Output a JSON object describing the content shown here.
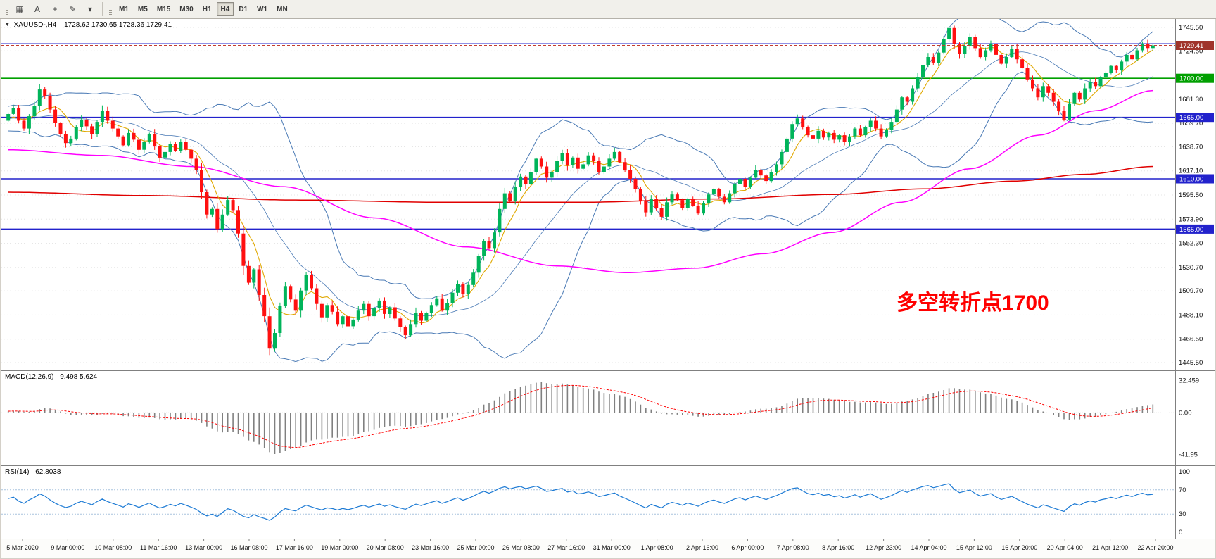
{
  "toolbar": {
    "icons": [
      {
        "name": "windows-grid-icon",
        "glyph": "▦"
      },
      {
        "name": "annotate-letter-icon",
        "glyph": "A"
      },
      {
        "name": "crosshair-icon",
        "glyph": "+"
      },
      {
        "name": "draw-tools-icon",
        "glyph": "✎"
      },
      {
        "name": "draw-tools-dropdown-icon",
        "glyph": "▾"
      }
    ],
    "timeframes": [
      "M1",
      "M5",
      "M15",
      "M30",
      "H1",
      "H4",
      "D1",
      "W1",
      "MN"
    ],
    "active_timeframe": "H4"
  },
  "chart": {
    "symbol_header": "XAUUSD-,H4",
    "ohlc_text": "1728.62 1730.65 1728.36 1729.41",
    "annotation": {
      "text": "多空转折点1700",
      "color": "#FF0000"
    },
    "price_ticks": [
      "1745.50",
      "1724.50",
      "1681.30",
      "1659.70",
      "1638.70",
      "1617.10",
      "1595.50",
      "1573.90",
      "1552.30",
      "1530.70",
      "1509.70",
      "1488.10",
      "1466.50",
      "1445.50"
    ],
    "hlines": [
      {
        "value": 1731.0,
        "label": "",
        "color": "#2222CC",
        "width": 1
      },
      {
        "value": 1700.0,
        "label": "1700.00",
        "color": "#00A000",
        "width": 1.6
      },
      {
        "value": 1665.0,
        "label": "1665.00",
        "color": "#2222CC",
        "width": 1.6
      },
      {
        "value": 1610.0,
        "label": "1610.00",
        "color": "#2222CC",
        "width": 1.6
      },
      {
        "value": 1565.0,
        "label": "1565.00",
        "color": "#2222CC",
        "width": 1.6
      }
    ],
    "current_price": {
      "value": 1729.41,
      "label": "1729.41",
      "line_color": "#C43C30",
      "badge_color": "#A0342B"
    },
    "time_labels": [
      "5 Mar 2020",
      "9 Mar 00:00",
      "10 Mar 08:00",
      "11 Mar 16:00",
      "13 Mar 00:00",
      "16 Mar 08:00",
      "17 Mar 16:00",
      "19 Mar 00:00",
      "20 Mar 08:00",
      "23 Mar 16:00",
      "25 Mar 00:00",
      "26 Mar 08:00",
      "27 Mar 16:00",
      "31 Mar 00:00",
      "1 Apr 08:00",
      "2 Apr 16:00",
      "6 Apr 00:00",
      "7 Apr 08:00",
      "8 Apr 16:00",
      "12 Apr 23:00",
      "14 Apr 04:00",
      "15 Apr 12:00",
      "16 Apr 20:00",
      "20 Apr 04:00",
      "21 Apr 12:00",
      "22 Apr 20:00"
    ]
  },
  "macd_panel": {
    "title": "MACD(12,26,9)",
    "values": "9.498 5.624",
    "ticks": [
      "32.459",
      "0.00",
      "-41.95"
    ],
    "range": [
      -45,
      35
    ]
  },
  "rsi_panel": {
    "title": "RSI(14)",
    "value": "62.8038",
    "ticks": [
      "100",
      "70",
      "30",
      "0"
    ],
    "levels": [
      70,
      30
    ]
  },
  "chart_data": {
    "type": "candlestick",
    "symbol": "XAUUSD-",
    "timeframe": "H4",
    "ylim": [
      1445.5,
      1745.5
    ],
    "preroll": [
      1655,
      1662,
      1670,
      1664,
      1658,
      1666,
      1674,
      1668,
      1660,
      1652,
      1658,
      1665,
      1672,
      1666,
      1659,
      1664,
      1670,
      1663,
      1656,
      1662
    ],
    "closes": [
      1668,
      1673,
      1662,
      1655,
      1666,
      1675,
      1690,
      1684,
      1672,
      1660,
      1650,
      1642,
      1646,
      1656,
      1663,
      1657,
      1650,
      1661,
      1671,
      1662,
      1655,
      1648,
      1640,
      1651,
      1645,
      1636,
      1643,
      1650,
      1639,
      1629,
      1634,
      1641,
      1635,
      1643,
      1636,
      1628,
      1618,
      1598,
      1578,
      1583,
      1565,
      1578,
      1591,
      1582,
      1561,
      1532,
      1517,
      1529,
      1506,
      1487,
      1458,
      1472,
      1496,
      1514,
      1502,
      1492,
      1510,
      1524,
      1512,
      1498,
      1486,
      1497,
      1491,
      1480,
      1487,
      1478,
      1484,
      1492,
      1498,
      1487,
      1494,
      1501,
      1489,
      1495,
      1485,
      1477,
      1470,
      1480,
      1490,
      1483,
      1490,
      1497,
      1503,
      1492,
      1499,
      1508,
      1516,
      1507,
      1515,
      1526,
      1541,
      1554,
      1548,
      1562,
      1583,
      1597,
      1590,
      1603,
      1612,
      1605,
      1616,
      1628,
      1621,
      1611,
      1616,
      1626,
      1633,
      1622,
      1629,
      1619,
      1623,
      1631,
      1626,
      1616,
      1621,
      1628,
      1634,
      1625,
      1618,
      1610,
      1601,
      1590,
      1580,
      1592,
      1584,
      1576,
      1589,
      1596,
      1591,
      1584,
      1592,
      1586,
      1579,
      1588,
      1596,
      1601,
      1594,
      1589,
      1597,
      1605,
      1610,
      1603,
      1611,
      1618,
      1613,
      1608,
      1616,
      1623,
      1634,
      1646,
      1659,
      1664,
      1656,
      1649,
      1646,
      1653,
      1647,
      1651,
      1645,
      1649,
      1643,
      1648,
      1655,
      1649,
      1656,
      1662,
      1655,
      1648,
      1654,
      1661,
      1672,
      1683,
      1679,
      1691,
      1701,
      1712,
      1719,
      1714,
      1723,
      1735,
      1745,
      1731,
      1722,
      1729,
      1737,
      1727,
      1719,
      1725,
      1731,
      1721,
      1713,
      1719,
      1726,
      1717,
      1709,
      1699,
      1691,
      1683,
      1693,
      1687,
      1679,
      1671,
      1663,
      1677,
      1687,
      1681,
      1691,
      1697,
      1693,
      1701,
      1705,
      1711,
      1707,
      1715,
      1721,
      1717,
      1725,
      1731,
      1727,
      1729.41
    ],
    "candle_colors": {
      "up": "#00B45A",
      "down": "#FF1010"
    },
    "overlays": {
      "bollinger": {
        "period": 20,
        "deviation": 2,
        "color": "#4A7AB5"
      },
      "ma_fast": {
        "period": 6,
        "color": "#E0A800"
      },
      "ma_mid_color": "#FF00FF",
      "ma_mid_anchors": [
        [
          0,
          1636
        ],
        [
          0.08,
          1631
        ],
        [
          0.16,
          1621
        ],
        [
          0.24,
          1603
        ],
        [
          0.32,
          1575
        ],
        [
          0.4,
          1549
        ],
        [
          0.48,
          1532
        ],
        [
          0.54,
          1526
        ],
        [
          0.6,
          1530
        ],
        [
          0.66,
          1543
        ],
        [
          0.72,
          1562
        ],
        [
          0.78,
          1589
        ],
        [
          0.84,
          1619
        ],
        [
          0.9,
          1649
        ],
        [
          0.95,
          1671
        ],
        [
          1,
          1689
        ]
      ],
      "ma_slow_color": "#E00000",
      "ma_slow_anchors": [
        [
          0,
          1598
        ],
        [
          0.12,
          1595
        ],
        [
          0.25,
          1591
        ],
        [
          0.38,
          1589
        ],
        [
          0.5,
          1589
        ],
        [
          0.62,
          1592
        ],
        [
          0.72,
          1596
        ],
        [
          0.8,
          1601
        ],
        [
          0.88,
          1608
        ],
        [
          0.94,
          1614
        ],
        [
          1,
          1621
        ]
      ]
    }
  }
}
